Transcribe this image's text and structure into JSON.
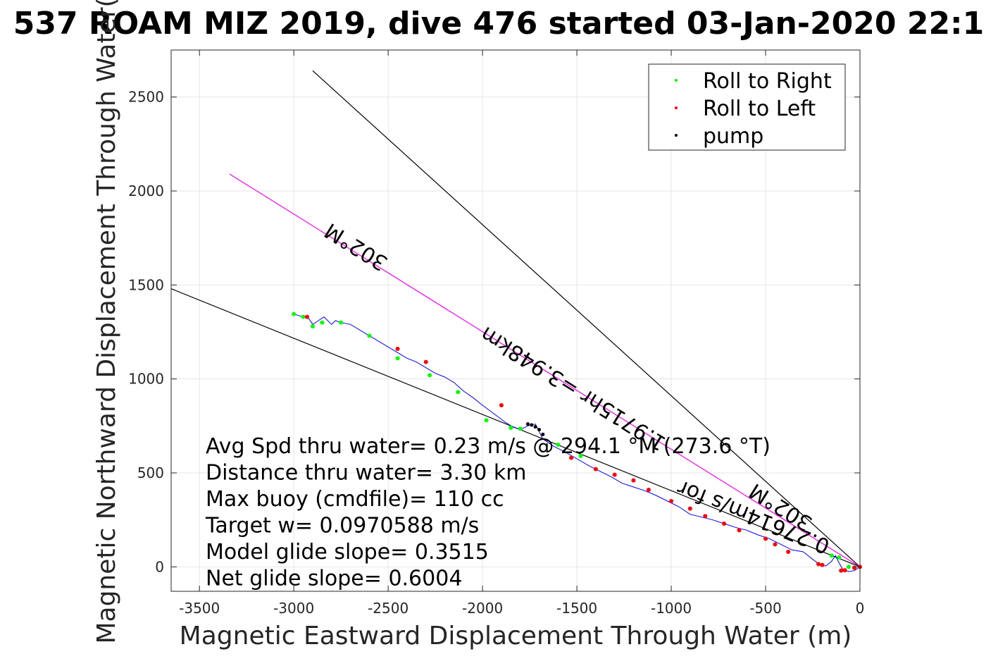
{
  "title": "537 ROAM MIZ 2019, dive 476 started 03-Jan-2020 22:1",
  "chart_data": {
    "type": "line",
    "xlabel": "Magnetic Eastward Displacement Through Water (m)",
    "ylabel": "Magnetic Northward Displacement Through Water(",
    "xlim": [
      -3650,
      0
    ],
    "ylim": [
      -130,
      2750
    ],
    "xticks": [
      -3500,
      -3000,
      -2500,
      -2000,
      -1500,
      -1000,
      -500,
      0
    ],
    "yticks": [
      0,
      500,
      1000,
      1500,
      2000,
      2500
    ],
    "grid": true,
    "legend_position": "top-right",
    "legend": [
      {
        "label": "Roll to Right",
        "color": "#00ff00"
      },
      {
        "label": "Roll to Left",
        "color": "#ff0000"
      },
      {
        "label": "pump",
        "color": "#000000"
      }
    ],
    "track": {
      "name": "",
      "color": "#0000ff",
      "x": [
        0,
        -30,
        -60,
        -90,
        -110,
        -130,
        -150,
        -180,
        -210,
        -250,
        -300,
        -360,
        -420,
        -480,
        -540,
        -600,
        -660,
        -720,
        -780,
        -840,
        -900,
        -960,
        -1020,
        -1080,
        -1140,
        -1200,
        -1260,
        -1320,
        -1380,
        -1440,
        -1500,
        -1560,
        -1620,
        -1680,
        -1700,
        -1720,
        -1760,
        -1800,
        -1840,
        -1880,
        -1920,
        -1960,
        -2000,
        -2050,
        -2100,
        -2150,
        -2200,
        -2250,
        -2300,
        -2350,
        -2400,
        -2450,
        -2500,
        -2550,
        -2600,
        -2650,
        -2700,
        -2750,
        -2780,
        -2800,
        -2840,
        -2870,
        -2900,
        -2920,
        -2950,
        -3000
      ],
      "y": [
        0,
        -20,
        -25,
        -15,
        20,
        60,
        30,
        5,
        10,
        40,
        80,
        90,
        120,
        150,
        170,
        195,
        210,
        230,
        250,
        265,
        280,
        320,
        350,
        380,
        405,
        425,
        445,
        480,
        510,
        540,
        575,
        610,
        640,
        680,
        720,
        760,
        750,
        730,
        745,
        770,
        800,
        830,
        860,
        900,
        935,
        980,
        1010,
        1030,
        1060,
        1090,
        1110,
        1140,
        1170,
        1200,
        1230,
        1260,
        1290,
        1300,
        1310,
        1290,
        1330,
        1310,
        1290,
        1320,
        1330,
        1345
      ]
    },
    "right_roll_points": {
      "x": [
        -3000,
        -2950,
        -2900,
        -2850,
        -2750,
        -2600,
        -2450,
        -2280,
        -2130,
        -1980,
        -1850,
        -1800,
        -1600,
        -1480,
        -150,
        -110,
        -60
      ],
      "y": [
        1345,
        1330,
        1280,
        1300,
        1300,
        1230,
        1110,
        1020,
        930,
        780,
        740,
        735,
        650,
        590,
        60,
        50,
        0
      ]
    },
    "left_roll_points": {
      "x": [
        -2930,
        -2450,
        -2300,
        -1900,
        -1530,
        -1400,
        -1300,
        -1200,
        -1120,
        -1000,
        -900,
        -820,
        -720,
        -640,
        -500,
        -450,
        -380,
        -220,
        -200,
        -100,
        -80,
        -30,
        0
      ],
      "y": [
        1330,
        1160,
        1090,
        860,
        580,
        520,
        490,
        460,
        410,
        350,
        310,
        270,
        230,
        195,
        150,
        120,
        80,
        15,
        10,
        -20,
        -18,
        -5,
        0
      ]
    },
    "pump_points": {
      "x": [
        -1760,
        -1740,
        -1720,
        -1700,
        -1680
      ],
      "y": [
        760,
        755,
        745,
        730,
        705
      ]
    },
    "heading_lines": [
      {
        "x": [
          0,
          -2900
        ],
        "y": [
          0,
          2640
        ],
        "color": "#000000"
      },
      {
        "x": [
          0,
          -3340
        ],
        "y": [
          0,
          2090
        ],
        "color": "#ff00ff"
      },
      {
        "x": [
          0,
          -3650
        ],
        "y": [
          0,
          1480
        ],
        "color": "#000000"
      }
    ],
    "annotations": [
      {
        "text": "302°M",
        "x": -2650,
        "y": 1735,
        "angle": -148
      },
      {
        "text": "1.9715hr =3.948km",
        "x": -1500,
        "y": 980,
        "angle": -148
      },
      {
        "text": "302°M",
        "x": -400,
        "y": 350,
        "angle": -148
      },
      {
        "text": "0.27614m/s for",
        "x": -550,
        "y": 300,
        "angle": -158
      }
    ],
    "stats": [
      "Avg Spd thru water=  0.23 m/s @ 294.1 °M (273.6 °T)",
      "Distance thru water=  3.30 km",
      "Max buoy (cmdfile)= 110 cc",
      "Target w= 0.0970588 m/s",
      "Model glide slope= 0.3515",
      "Net glide slope= 0.6004"
    ]
  }
}
